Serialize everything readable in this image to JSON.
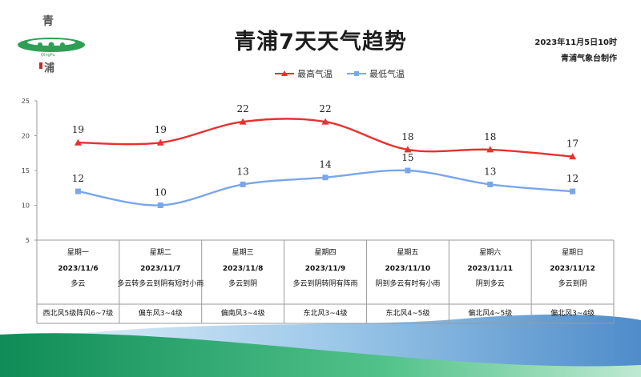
{
  "title": "青浦7天天气趋势",
  "issue_date": "2023年11月5日10时",
  "issuer": "青浦气象台制作",
  "logo": {
    "text_top": "青",
    "text_sub": "QingPu",
    "text_bottom": "浦"
  },
  "legend": {
    "high": "最高气温",
    "low": "最低气温"
  },
  "colors": {
    "high": "#e8312f",
    "low": "#7aa6ea",
    "grid": "#9a9a9a",
    "wave_green": "#33a86f",
    "wave_blue": "#3b7ec4"
  },
  "table": [
    {
      "weekday": "星期一",
      "date": "2023/11/6",
      "weather": "多云",
      "wind": "西北风5级阵风6~7级"
    },
    {
      "weekday": "星期二",
      "date": "2023/11/7",
      "weather": "多云转多云到阴有短时小雨",
      "wind": "偏东风3~4级"
    },
    {
      "weekday": "星期三",
      "date": "2023/11/8",
      "weather": "多云到阴",
      "wind": "偏南风3~4级"
    },
    {
      "weekday": "星期四",
      "date": "2023/11/9",
      "weather": "多云到阴转阴有阵雨",
      "wind": "东北风3~4级"
    },
    {
      "weekday": "星期五",
      "date": "2023/11/10",
      "weather": "阴到多云有时有小雨",
      "wind": "东北风4~5级"
    },
    {
      "weekday": "星期六",
      "date": "2023/11/11",
      "weather": "阴到多云",
      "wind": "偏北风4~5级"
    },
    {
      "weekday": "星期日",
      "date": "2023/11/12",
      "weather": "多云到阴",
      "wind": "偏北风3~4级"
    }
  ],
  "chart_data": {
    "type": "line",
    "title": "青浦7天天气趋势",
    "categories": [
      "2023/11/6",
      "2023/11/7",
      "2023/11/8",
      "2023/11/9",
      "2023/11/10",
      "2023/11/11",
      "2023/11/12"
    ],
    "series": [
      {
        "name": "最高气温",
        "values": [
          19,
          19,
          22,
          22,
          18,
          18,
          17
        ],
        "color": "#e8312f",
        "marker": "triangle"
      },
      {
        "name": "最低气温",
        "values": [
          12,
          10,
          13,
          14,
          15,
          13,
          12
        ],
        "color": "#7aa6ea",
        "marker": "square"
      }
    ],
    "ylim": [
      5,
      25
    ],
    "yticks": [
      5,
      10,
      15,
      20,
      25
    ],
    "grid": false,
    "legend_position": "top-center",
    "data_labels": true
  }
}
